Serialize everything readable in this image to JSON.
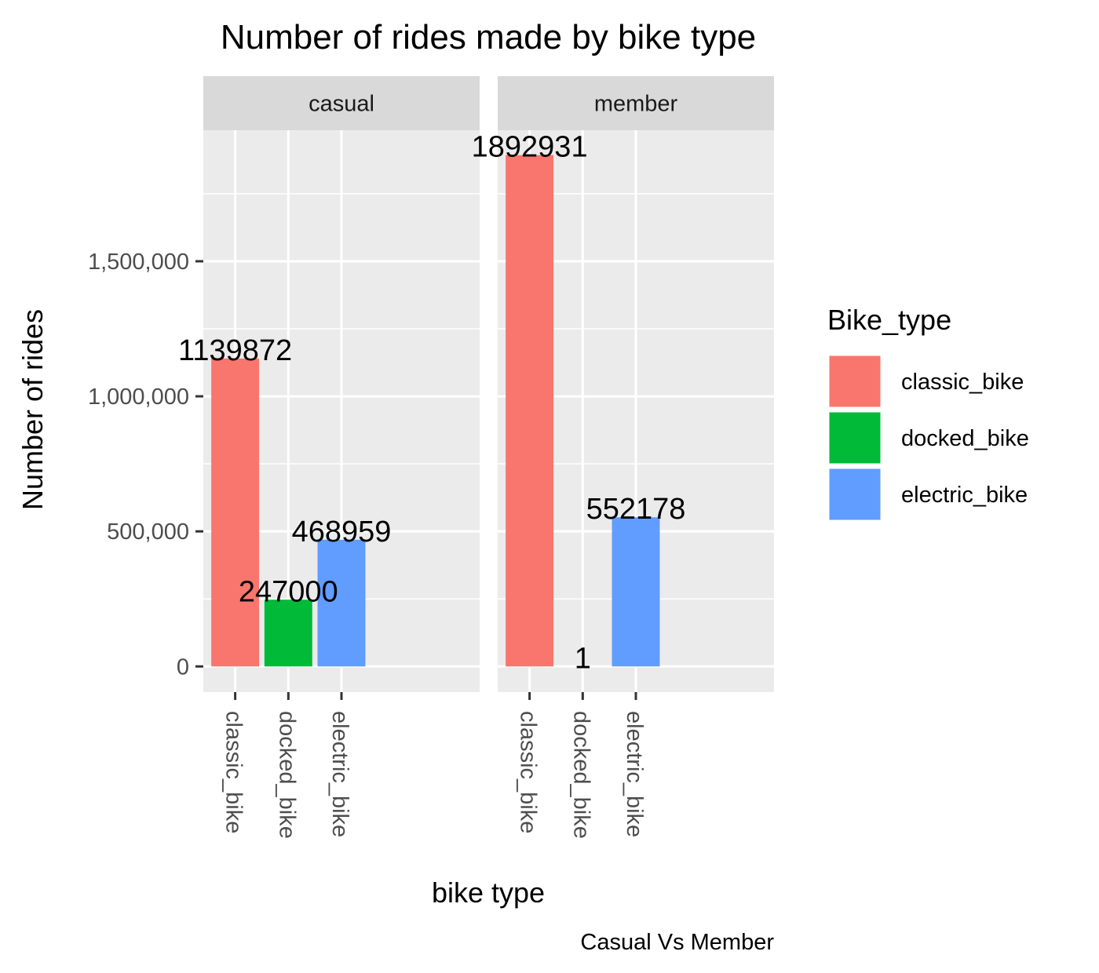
{
  "chart_data": {
    "type": "bar",
    "title": "Number of rides made by bike type",
    "xlabel": "bike type",
    "ylabel": "Number of rides",
    "caption": "Casual Vs Member",
    "ylim": [
      -95000,
      1985000
    ],
    "yticks": [
      0,
      500000,
      1000000,
      1500000
    ],
    "ytick_labels": [
      "0",
      "500,000",
      "1,000,000",
      "1,500,000"
    ],
    "categories": [
      "classic_bike",
      "docked_bike",
      "electric_bike"
    ],
    "facets": [
      {
        "name": "casual",
        "values": [
          1139872,
          247000,
          468959
        ],
        "labels": [
          "1139872",
          "247000",
          "468959"
        ]
      },
      {
        "name": "member",
        "values": [
          1892931,
          1,
          552178
        ],
        "labels": [
          "1892931",
          "1",
          "552178"
        ]
      }
    ],
    "legend": {
      "title": "Bike_type",
      "position": "right",
      "items": [
        {
          "label": "classic_bike",
          "color": "#F8766D"
        },
        {
          "label": "docked_bike",
          "color": "#00BA38"
        },
        {
          "label": "electric_bike",
          "color": "#619CFF"
        }
      ]
    },
    "panel_background": "#EBEBEB",
    "strip_background": "#D9D9D9",
    "grid": true
  }
}
